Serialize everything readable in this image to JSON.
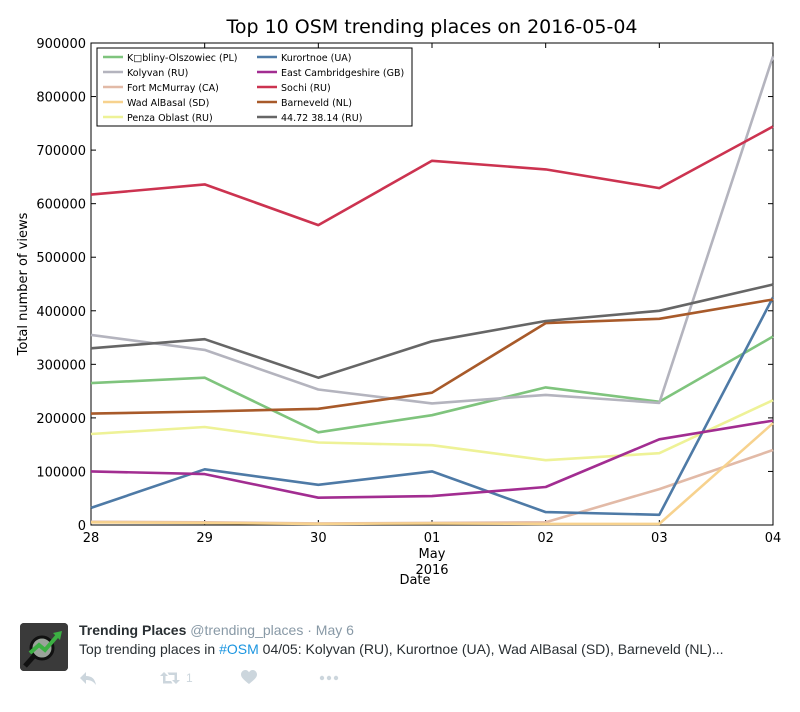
{
  "chart_data": {
    "type": "line",
    "title": "Top 10 OSM trending places on 2016-05-04",
    "xlabel": "Date",
    "ylabel": "Total number of views",
    "x_ticks": [
      "28",
      "29",
      "30",
      "01",
      "02",
      "03",
      "04"
    ],
    "x_minor_label": [
      "May",
      "2016"
    ],
    "ylim": [
      0,
      900000
    ],
    "y_ticks": [
      0,
      100000,
      200000,
      300000,
      400000,
      500000,
      600000,
      700000,
      800000,
      900000
    ],
    "legend_position": "top-left",
    "grid": false,
    "series": [
      {
        "name": "K□bliny-Olszowiec (PL)",
        "color": "#7fc47d",
        "values": [
          265000,
          275000,
          173000,
          205000,
          257000,
          230000,
          352000
        ]
      },
      {
        "name": "Kolyvan (RU)",
        "color": "#b4b4be",
        "values": [
          355000,
          327000,
          253000,
          227000,
          243000,
          228000,
          875000
        ]
      },
      {
        "name": "Fort McMurray (CA)",
        "color": "#e2baa7",
        "values": [
          6000,
          5000,
          3000,
          4000,
          5000,
          67000,
          140000
        ]
      },
      {
        "name": "Wad AlBasal (SD)",
        "color": "#f7d28e",
        "values": [
          5000,
          4000,
          2000,
          3000,
          2000,
          2000,
          190000
        ]
      },
      {
        "name": "Penza Oblast (RU)",
        "color": "#eef297",
        "values": [
          170000,
          183000,
          154000,
          149000,
          121000,
          134000,
          233000
        ]
      },
      {
        "name": "Kurortnoe (UA)",
        "color": "#4e7aa6",
        "values": [
          32000,
          104000,
          75000,
          100000,
          24000,
          19000,
          425000
        ]
      },
      {
        "name": "East Cambridgeshire (GB)",
        "color": "#a22d91",
        "values": [
          100000,
          95000,
          51000,
          54000,
          71000,
          160000,
          195000
        ]
      },
      {
        "name": "Sochi (RU)",
        "color": "#cc3350",
        "values": [
          617000,
          636000,
          560000,
          680000,
          664000,
          629000,
          744000
        ]
      },
      {
        "name": "Barneveld (NL)",
        "color": "#a85a2a",
        "values": [
          208000,
          212000,
          217000,
          247000,
          377000,
          385000,
          421000
        ]
      },
      {
        "name": "44.72 38.14 (RU)",
        "color": "#666666",
        "values": [
          330000,
          347000,
          275000,
          343000,
          381000,
          400000,
          449000
        ]
      }
    ]
  },
  "tweet": {
    "name": "Trending Places",
    "handle": "@trending_places",
    "dot": "·",
    "date": "May 6",
    "text_prefix": "Top trending places in ",
    "hashtag": "#OSM",
    "text_suffix": " 04/05: Kolyvan (RU), Kurortnoe (UA), Wad AlBasal (SD), Barneveld (NL)...",
    "retweet_count": "1",
    "avatar_icon": "trending-magnifier-icon",
    "reply_icon": "reply-icon",
    "retweet_icon": "retweet-icon",
    "like_icon": "heart-icon",
    "more_icon": "more-icon"
  }
}
